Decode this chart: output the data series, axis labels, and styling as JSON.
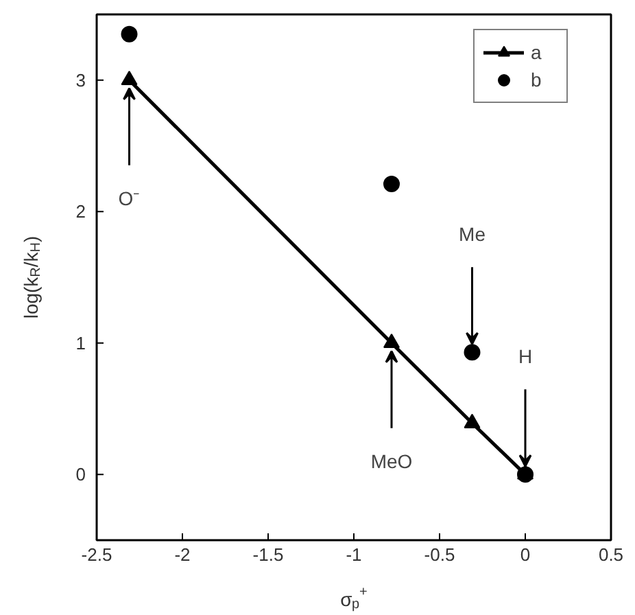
{
  "chart_data": {
    "type": "line",
    "xlabel": "σ$_{p}$$^{+}$",
    "ylabel": "log(k$_{R}$/k$_{H}$)",
    "xlim": [
      -2.5,
      0.5
    ],
    "xticks": [
      -2.5,
      -2,
      -1.5,
      -1,
      -0.5,
      0,
      0.5
    ],
    "ylim": [
      -0.5,
      3.5
    ],
    "yticks": [
      0,
      1,
      2,
      3
    ],
    "series": [
      {
        "name": "a",
        "marker": "triangle",
        "color": "#000000",
        "x": [
          -2.31,
          -0.78,
          -0.31,
          0
        ],
        "values": [
          3.0,
          1.0,
          0.39,
          0
        ]
      },
      {
        "name": "b",
        "type": "scatter",
        "marker": "circle",
        "color": "#000000",
        "x": [
          -2.31,
          -0.78,
          -0.31,
          0
        ],
        "values": [
          3.35,
          2.21,
          0.93,
          0
        ]
      }
    ],
    "annotations": [
      {
        "text": "O⁻",
        "x": -2.31,
        "y": 3.0
      },
      {
        "text": "MeO",
        "x": -0.78,
        "y": 1.0
      },
      {
        "text": "Me",
        "x": -0.31,
        "y": 0.93
      },
      {
        "text": "H",
        "x": 0,
        "y": 0
      }
    ],
    "legend": "top right",
    "grid": false
  }
}
